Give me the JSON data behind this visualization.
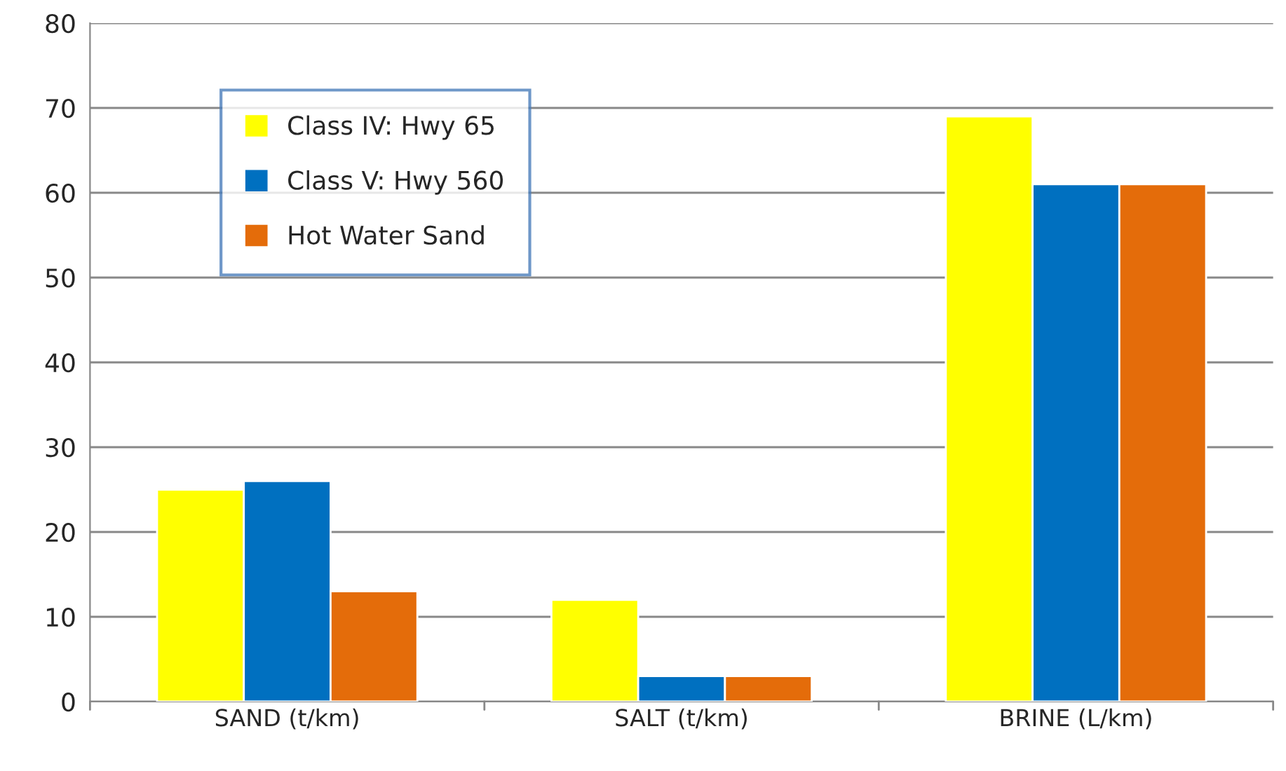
{
  "chart_data": {
    "type": "bar",
    "categories": [
      "SAND (t/km)",
      "SALT (t/km)",
      "BRINE (L/km)"
    ],
    "series": [
      {
        "name": "Class IV: Hwy 65",
        "color": "#ffff00",
        "values": [
          25,
          12,
          69
        ]
      },
      {
        "name": "Class V: Hwy 560",
        "color": "#0070c0",
        "values": [
          26,
          3,
          61
        ]
      },
      {
        "name": "Hot Water Sand",
        "color": "#e46c0a",
        "values": [
          13,
          3,
          61
        ]
      }
    ],
    "ylim": [
      0,
      80
    ],
    "yticks": [
      0,
      10,
      20,
      30,
      40,
      50,
      60,
      70,
      80
    ],
    "grid": "y",
    "legend": "top left"
  }
}
